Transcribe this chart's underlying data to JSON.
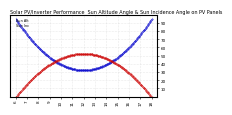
{
  "title": "Solar PV/Inverter Performance  Sun Altitude Angle & Sun Incidence Angle on PV Panels",
  "legend1": "Sun Alt",
  "legend2": "Sun Inc",
  "bg_color": "#ffffff",
  "blue_color": "#0000cc",
  "red_color": "#cc0000",
  "y_right_ticks": [
    10,
    20,
    30,
    40,
    50,
    60,
    70,
    80,
    90
  ],
  "y_right_labels": [
    "10",
    "20",
    "30",
    "40",
    "50",
    "60",
    "70",
    "80",
    "90"
  ],
  "x_hours": [
    6,
    7,
    8,
    9,
    10,
    11,
    12,
    13,
    14,
    15,
    16,
    17,
    18
  ],
  "x_labels": [
    "6",
    "7",
    "8",
    "9",
    "10",
    "11",
    "12",
    "13",
    "14",
    "15",
    "16",
    "17",
    "18"
  ],
  "sun_altitude": [
    90,
    78,
    65,
    52,
    40,
    30,
    25,
    30,
    40,
    52,
    65,
    78,
    90
  ],
  "sun_incidence": [
    5,
    12,
    22,
    35,
    47,
    55,
    58,
    55,
    47,
    35,
    22,
    12,
    5
  ],
  "ylim": [
    0,
    100
  ],
  "xlim": [
    5.5,
    18.5
  ],
  "grid_color": "#cccccc",
  "title_fontsize": 3.5,
  "tick_fontsize": 3.0
}
